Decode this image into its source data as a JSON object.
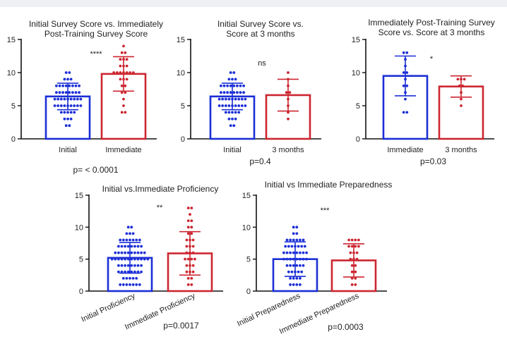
{
  "colors": {
    "blue": "#1c2fd6",
    "red": "#cc2630",
    "axis": "#111111"
  },
  "chart_data": [
    {
      "type": "bar",
      "title": "Initial Survey Score vs. Immediately Post-Training Survey Score",
      "title_lines": [
        "Initial Survey Score vs. Immediately",
        "Post-Training Survey Score"
      ],
      "categories": [
        "Initial",
        "Immediate"
      ],
      "yticks": [
        "0",
        "5",
        "10",
        "15"
      ],
      "ylim": [
        0,
        15
      ],
      "grid": false,
      "series": [
        {
          "mean": 6.4,
          "sd": 2.0,
          "color": "blue",
          "points": [
            10,
            10,
            9,
            9,
            9,
            8,
            8,
            8,
            8,
            8,
            8,
            8,
            8,
            7,
            7,
            7,
            7,
            7,
            7,
            7,
            7,
            6,
            6,
            6,
            6,
            6,
            6,
            6,
            6,
            6,
            5,
            5,
            5,
            5,
            5,
            5,
            5,
            5,
            5,
            4,
            4,
            4,
            4,
            4,
            3,
            3,
            3,
            2,
            2
          ]
        },
        {
          "mean": 9.8,
          "sd": 2.6,
          "color": "red",
          "points": [
            14,
            13,
            13,
            12,
            12,
            12,
            11,
            11,
            11,
            10,
            10,
            10,
            10,
            10,
            10,
            10,
            9,
            9,
            9,
            8,
            8,
            7,
            7,
            6,
            5,
            4,
            4
          ]
        }
      ],
      "significance": "****",
      "p_label": "p= < 0.0001"
    },
    {
      "type": "bar",
      "title": "Initial Survey Score vs. Score at 3 months",
      "title_lines": [
        "Initial Survey Score vs.",
        "Score at 3 months"
      ],
      "categories": [
        "Initial",
        "3 months"
      ],
      "yticks": [
        "0",
        "5",
        "10",
        "15"
      ],
      "ylim": [
        0,
        15
      ],
      "grid": false,
      "series": [
        {
          "mean": 6.4,
          "sd": 2.0,
          "color": "blue",
          "points": [
            10,
            10,
            9,
            9,
            9,
            8,
            8,
            8,
            8,
            8,
            8,
            8,
            8,
            7,
            7,
            7,
            7,
            7,
            7,
            7,
            7,
            6,
            6,
            6,
            6,
            6,
            6,
            6,
            6,
            6,
            5,
            5,
            5,
            5,
            5,
            5,
            5,
            5,
            5,
            4,
            4,
            4,
            4,
            4,
            3,
            3,
            3,
            2,
            2
          ]
        },
        {
          "mean": 6.6,
          "sd": 2.4,
          "color": "red",
          "points": [
            10,
            9,
            8,
            7,
            7,
            6,
            5,
            4,
            3
          ]
        }
      ],
      "significance": "ns",
      "p_label": "p=0.4"
    },
    {
      "type": "bar",
      "title": "Immediately Post-Training Survey Score vs. Score at 3 months",
      "title_lines": [
        "Immediately Post-Training Survey",
        "Score vs. Score at 3 months"
      ],
      "categories": [
        "Immediate",
        "3 months"
      ],
      "yticks": [
        "0",
        "5",
        "10",
        "15"
      ],
      "ylim": [
        0,
        15
      ],
      "grid": false,
      "series": [
        {
          "mean": 9.5,
          "sd": 3.0,
          "color": "blue",
          "points": [
            13,
            13,
            12,
            11,
            10,
            10,
            9,
            8,
            8,
            7,
            6,
            4,
            4
          ]
        },
        {
          "mean": 7.9,
          "sd": 1.6,
          "color": "red",
          "points": [
            9,
            9,
            9,
            8,
            8,
            7,
            6,
            5
          ]
        }
      ],
      "significance": "*",
      "p_label": "p=0.03"
    },
    {
      "type": "bar",
      "title": "Initial vs.Immediate Proficiency",
      "title_lines": [
        "Initial vs.Immediate Proficiency"
      ],
      "categories": [
        "Initial Proficiency",
        "Immediate Proficiency"
      ],
      "yticks": [
        "0",
        "5",
        "10",
        "15"
      ],
      "ylim": [
        0,
        15
      ],
      "grid": false,
      "series": [
        {
          "mean": 5.2,
          "sd": 2.4,
          "color": "blue",
          "points": [
            10,
            10,
            9,
            9,
            9,
            8,
            8,
            8,
            8,
            8,
            8,
            8,
            7,
            7,
            7,
            7,
            7,
            7,
            7,
            7,
            6,
            6,
            6,
            6,
            6,
            6,
            6,
            6,
            6,
            6,
            5,
            5,
            5,
            5,
            5,
            5,
            5,
            5,
            5,
            5,
            5,
            5,
            4,
            4,
            4,
            4,
            4,
            4,
            4,
            4,
            3,
            3,
            3,
            3,
            3,
            3,
            3,
            3,
            2,
            2,
            2,
            2,
            2,
            1,
            1,
            1,
            1,
            1,
            1,
            1
          ]
        },
        {
          "mean": 5.9,
          "sd": 3.4,
          "color": "red",
          "points": [
            13,
            13,
            12,
            11,
            11,
            10,
            10,
            9,
            9,
            8,
            8,
            8,
            7,
            7,
            7,
            6,
            6,
            6,
            5,
            5,
            5,
            5,
            4,
            4,
            4,
            3,
            3,
            3,
            2,
            2,
            1,
            1
          ]
        }
      ],
      "significance": "**",
      "p_label": "p=0.0017"
    },
    {
      "type": "bar",
      "title": "Initial vs Immediate Preparedness",
      "title_lines": [
        "Initial vs Immediate Preparedness"
      ],
      "categories": [
        "Initial Preparedness",
        "Immediate Preparedness"
      ],
      "yticks": [
        "0",
        "5",
        "10",
        "15"
      ],
      "ylim": [
        0,
        15
      ],
      "grid": false,
      "series": [
        {
          "mean": 5.0,
          "sd": 2.7,
          "color": "blue",
          "points": [
            10,
            10,
            9,
            9,
            8,
            8,
            8,
            8,
            8,
            8,
            7,
            7,
            7,
            7,
            7,
            7,
            7,
            6,
            6,
            6,
            6,
            6,
            6,
            6,
            6,
            5,
            5,
            5,
            5,
            5,
            5,
            5,
            5,
            4,
            4,
            4,
            4,
            4,
            4,
            3,
            3,
            3,
            3,
            3,
            2,
            2,
            2,
            2,
            1,
            1,
            1,
            1
          ]
        },
        {
          "mean": 4.8,
          "sd": 2.6,
          "color": "red",
          "points": [
            8,
            8,
            8,
            8,
            7,
            7,
            7,
            7,
            6,
            6,
            6,
            5,
            5,
            5,
            4,
            4,
            3,
            3,
            2,
            2,
            1,
            1
          ]
        }
      ],
      "significance": "***",
      "p_label": "p=0.0003"
    }
  ]
}
